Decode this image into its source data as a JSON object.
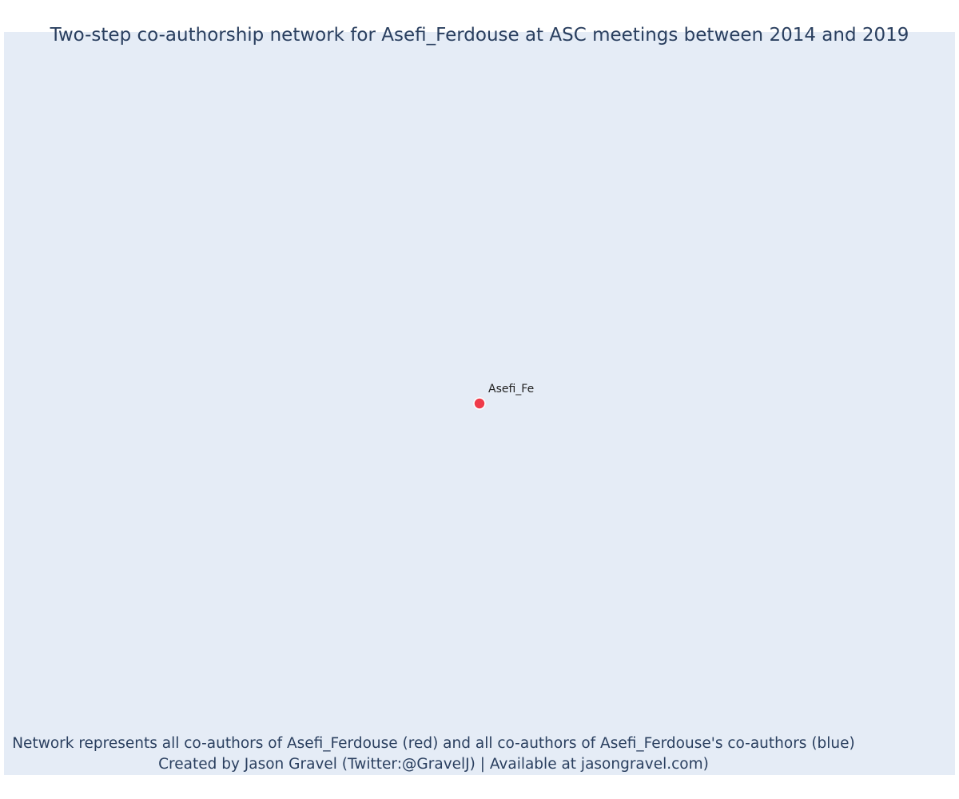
{
  "title": "Two-step co-authorship network for Asefi_Ferdouse at ASC meetings between 2014 and 2019",
  "caption": {
    "line1": "Network represents all co-authors of Asefi_Ferdouse (red) and all co-authors of Asefi_Ferdouse's co-authors (blue)",
    "line2": "Created by Jason Gravel (Twitter:@GravelJ) | Available at jasongravel.com)"
  },
  "colors": {
    "plot_background": "#e5ecf6",
    "text": "#2a3f5f",
    "focal_node": "#ef3b4a",
    "node_outline": "#ffffff",
    "label": "#222222"
  },
  "network": {
    "nodes": [
      {
        "id": "Asefi_Ferdouse",
        "label": "Asefi_Fe",
        "role": "focal",
        "color": "#ef3b4a"
      }
    ],
    "edges": []
  }
}
